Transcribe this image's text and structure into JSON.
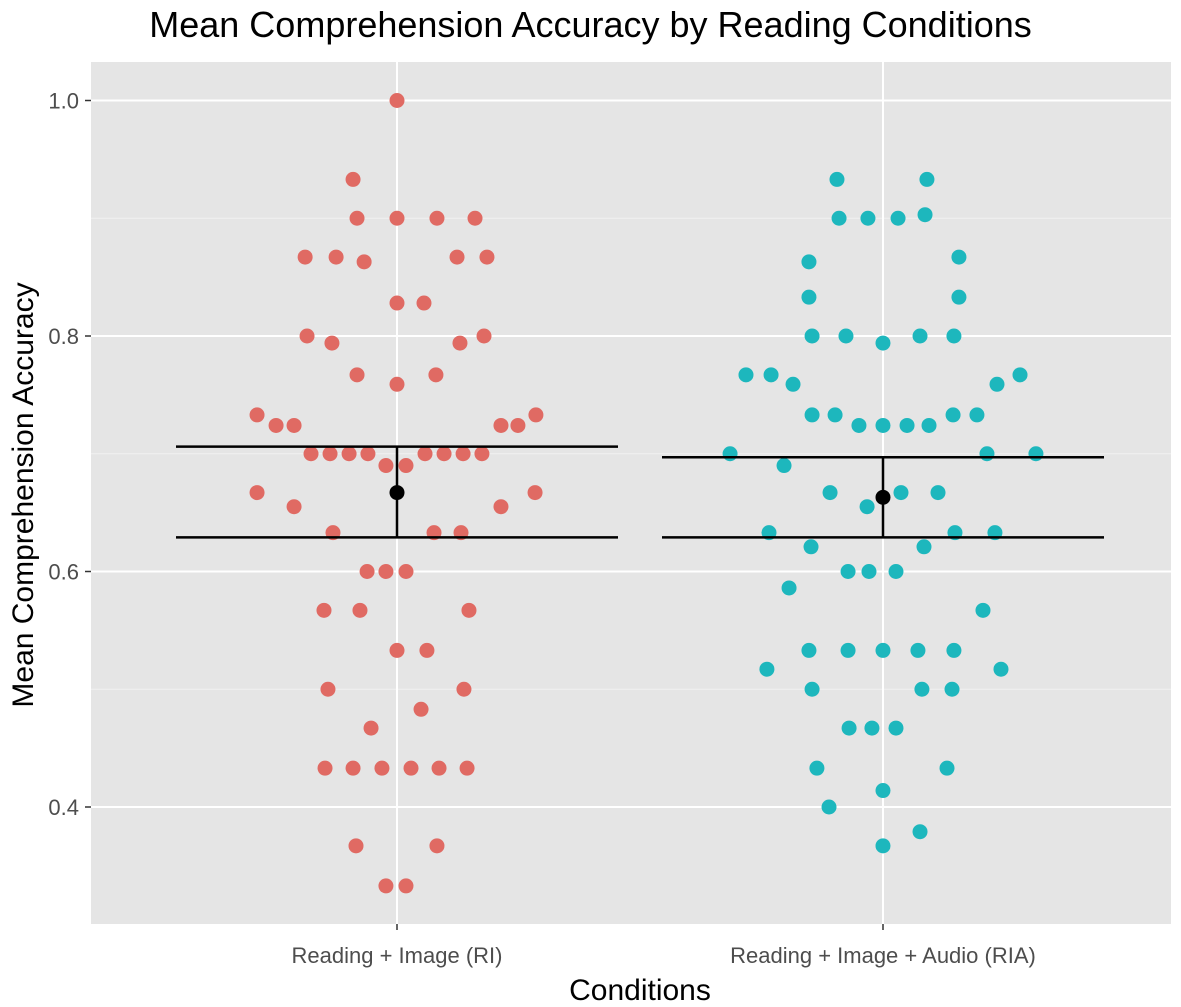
{
  "chart_data": {
    "type": "scatter",
    "title": "Mean Comprehension Accuracy by Reading Conditions",
    "xlabel": "Conditions",
    "ylabel": "Mean Comprehension Accuracy",
    "categories": [
      "Reading + Image (RI)",
      "Reading + Image + Audio (RIA)"
    ],
    "ylim": [
      0.32,
      1.03
    ],
    "yticks": [
      "0.4",
      "0.6",
      "0.8",
      "1.0"
    ],
    "ytick_values": [
      0.4,
      0.6,
      0.8,
      1.0
    ],
    "grid": true,
    "background": "#e5e5e5",
    "series": [
      {
        "category": "Reading + Image (RI)",
        "color": "#e06a63",
        "mean": 0.667,
        "ci": [
          0.629,
          0.706
        ],
        "points": [
          {
            "offset": 0.0,
            "y": 1.0
          },
          {
            "offset": -0.254,
            "y": 0.933
          },
          {
            "offset": -0.231,
            "y": 0.9
          },
          {
            "offset": 0.0,
            "y": 0.9
          },
          {
            "offset": 0.231,
            "y": 0.9
          },
          {
            "offset": 0.451,
            "y": 0.9
          },
          {
            "offset": -0.531,
            "y": 0.867
          },
          {
            "offset": -0.352,
            "y": 0.867
          },
          {
            "offset": -0.19,
            "y": 0.863
          },
          {
            "offset": 0.347,
            "y": 0.867
          },
          {
            "offset": 0.52,
            "y": 0.867
          },
          {
            "offset": 0.0,
            "y": 0.828
          },
          {
            "offset": 0.156,
            "y": 0.828
          },
          {
            "offset": -0.52,
            "y": 0.8
          },
          {
            "offset": -0.376,
            "y": 0.794
          },
          {
            "offset": 0.364,
            "y": 0.794
          },
          {
            "offset": 0.503,
            "y": 0.8
          },
          {
            "offset": -0.231,
            "y": 0.767
          },
          {
            "offset": 0.0,
            "y": 0.759
          },
          {
            "offset": 0.225,
            "y": 0.767
          },
          {
            "offset": -0.809,
            "y": 0.733
          },
          {
            "offset": -0.699,
            "y": 0.724
          },
          {
            "offset": -0.595,
            "y": 0.724
          },
          {
            "offset": 0.601,
            "y": 0.724
          },
          {
            "offset": 0.699,
            "y": 0.724
          },
          {
            "offset": 0.803,
            "y": 0.733
          },
          {
            "offset": -0.497,
            "y": 0.7
          },
          {
            "offset": -0.387,
            "y": 0.7
          },
          {
            "offset": -0.277,
            "y": 0.7
          },
          {
            "offset": -0.168,
            "y": 0.7
          },
          {
            "offset": -0.064,
            "y": 0.69
          },
          {
            "offset": 0.052,
            "y": 0.69
          },
          {
            "offset": 0.162,
            "y": 0.7
          },
          {
            "offset": 0.272,
            "y": 0.7
          },
          {
            "offset": 0.382,
            "y": 0.7
          },
          {
            "offset": 0.491,
            "y": 0.7
          },
          {
            "offset": -0.809,
            "y": 0.667
          },
          {
            "offset": -0.595,
            "y": 0.655
          },
          {
            "offset": 0.601,
            "y": 0.655
          },
          {
            "offset": 0.798,
            "y": 0.667
          },
          {
            "offset": -0.37,
            "y": 0.633
          },
          {
            "offset": 0.214,
            "y": 0.633
          },
          {
            "offset": 0.37,
            "y": 0.633
          },
          {
            "offset": -0.173,
            "y": 0.6
          },
          {
            "offset": -0.064,
            "y": 0.6
          },
          {
            "offset": 0.052,
            "y": 0.6
          },
          {
            "offset": -0.422,
            "y": 0.567
          },
          {
            "offset": -0.214,
            "y": 0.567
          },
          {
            "offset": 0.416,
            "y": 0.567
          },
          {
            "offset": 0.0,
            "y": 0.533
          },
          {
            "offset": 0.173,
            "y": 0.533
          },
          {
            "offset": -0.399,
            "y": 0.5
          },
          {
            "offset": 0.387,
            "y": 0.5
          },
          {
            "offset": 0.139,
            "y": 0.483
          },
          {
            "offset": -0.15,
            "y": 0.467
          },
          {
            "offset": -0.416,
            "y": 0.433
          },
          {
            "offset": -0.254,
            "y": 0.433
          },
          {
            "offset": -0.087,
            "y": 0.433
          },
          {
            "offset": 0.081,
            "y": 0.433
          },
          {
            "offset": 0.243,
            "y": 0.433
          },
          {
            "offset": 0.405,
            "y": 0.433
          },
          {
            "offset": -0.237,
            "y": 0.367
          },
          {
            "offset": 0.231,
            "y": 0.367
          },
          {
            "offset": -0.064,
            "y": 0.333
          },
          {
            "offset": 0.052,
            "y": 0.333
          }
        ]
      },
      {
        "category": "Reading + Image + Audio (RIA)",
        "color": "#1db7bd",
        "mean": 0.663,
        "ci": [
          0.629,
          0.697
        ],
        "points": [
          {
            "offset": -0.266,
            "y": 0.933
          },
          {
            "offset": 0.254,
            "y": 0.933
          },
          {
            "offset": -0.254,
            "y": 0.9
          },
          {
            "offset": -0.087,
            "y": 0.9
          },
          {
            "offset": 0.087,
            "y": 0.9
          },
          {
            "offset": 0.243,
            "y": 0.903
          },
          {
            "offset": -0.428,
            "y": 0.863
          },
          {
            "offset": 0.439,
            "y": 0.867
          },
          {
            "offset": -0.428,
            "y": 0.833
          },
          {
            "offset": 0.439,
            "y": 0.833
          },
          {
            "offset": -0.41,
            "y": 0.8
          },
          {
            "offset": -0.214,
            "y": 0.8
          },
          {
            "offset": 0.0,
            "y": 0.794
          },
          {
            "offset": 0.214,
            "y": 0.8
          },
          {
            "offset": 0.41,
            "y": 0.8
          },
          {
            "offset": -0.792,
            "y": 0.767
          },
          {
            "offset": -0.647,
            "y": 0.767
          },
          {
            "offset": -0.52,
            "y": 0.759
          },
          {
            "offset": 0.659,
            "y": 0.759
          },
          {
            "offset": 0.792,
            "y": 0.767
          },
          {
            "offset": -0.41,
            "y": 0.733
          },
          {
            "offset": -0.277,
            "y": 0.733
          },
          {
            "offset": -0.139,
            "y": 0.724
          },
          {
            "offset": 0.0,
            "y": 0.724
          },
          {
            "offset": 0.139,
            "y": 0.724
          },
          {
            "offset": 0.266,
            "y": 0.724
          },
          {
            "offset": 0.405,
            "y": 0.733
          },
          {
            "offset": 0.543,
            "y": 0.733
          },
          {
            "offset": -0.884,
            "y": 0.7
          },
          {
            "offset": 0.884,
            "y": 0.7
          },
          {
            "offset": 0.601,
            "y": 0.7
          },
          {
            "offset": -0.572,
            "y": 0.69
          },
          {
            "offset": -0.306,
            "y": 0.667
          },
          {
            "offset": -0.092,
            "y": 0.655
          },
          {
            "offset": 0.104,
            "y": 0.667
          },
          {
            "offset": 0.318,
            "y": 0.667
          },
          {
            "offset": -0.659,
            "y": 0.633
          },
          {
            "offset": 0.416,
            "y": 0.633
          },
          {
            "offset": 0.647,
            "y": 0.633
          },
          {
            "offset": -0.416,
            "y": 0.621
          },
          {
            "offset": 0.237,
            "y": 0.621
          },
          {
            "offset": -0.202,
            "y": 0.6
          },
          {
            "offset": -0.081,
            "y": 0.6
          },
          {
            "offset": 0.075,
            "y": 0.6
          },
          {
            "offset": -0.543,
            "y": 0.586
          },
          {
            "offset": 0.578,
            "y": 0.567
          },
          {
            "offset": -0.428,
            "y": 0.533
          },
          {
            "offset": -0.202,
            "y": 0.533
          },
          {
            "offset": 0.0,
            "y": 0.533
          },
          {
            "offset": 0.202,
            "y": 0.533
          },
          {
            "offset": 0.41,
            "y": 0.533
          },
          {
            "offset": -0.671,
            "y": 0.517
          },
          {
            "offset": 0.682,
            "y": 0.517
          },
          {
            "offset": -0.41,
            "y": 0.5
          },
          {
            "offset": 0.225,
            "y": 0.5
          },
          {
            "offset": 0.399,
            "y": 0.5
          },
          {
            "offset": -0.196,
            "y": 0.467
          },
          {
            "offset": -0.064,
            "y": 0.467
          },
          {
            "offset": 0.075,
            "y": 0.467
          },
          {
            "offset": -0.382,
            "y": 0.433
          },
          {
            "offset": 0.37,
            "y": 0.433
          },
          {
            "offset": -0.312,
            "y": 0.4
          },
          {
            "offset": 0.0,
            "y": 0.414
          },
          {
            "offset": 0.214,
            "y": 0.379
          },
          {
            "offset": 0.0,
            "y": 0.367
          }
        ]
      }
    ]
  }
}
